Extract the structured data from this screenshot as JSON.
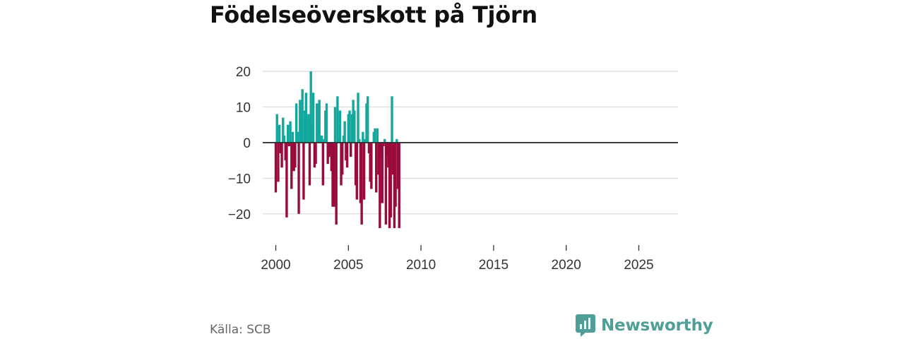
{
  "title": "Födelseöverskott på Tjörn",
  "source": "Källa: SCB",
  "brand": {
    "name": "Newsworthy",
    "icon": "newsworthy-logo-icon"
  },
  "colors": {
    "positive": "#13a89e",
    "negative": "#9b0a3c",
    "grid": "#dddddd",
    "zero": "#333333",
    "text": "#333333"
  },
  "chart_data": {
    "type": "bar",
    "title": "Födelseöverskott på Tjörn",
    "xlabel": "",
    "ylabel": "",
    "ylim": [
      -25,
      21
    ],
    "xlim": [
      1999.1,
      2027.7
    ],
    "y_ticks": [
      20,
      10,
      0,
      -10,
      -20
    ],
    "y_tick_labels": [
      "20",
      "10",
      "0",
      "−10",
      "−20"
    ],
    "x_ticks": [
      2000,
      2005,
      2010,
      2015,
      2020,
      2025
    ],
    "x_tick_labels": [
      "2000",
      "2005",
      "2010",
      "2015",
      "2020",
      "2025"
    ],
    "grid": true,
    "legend": "none",
    "series": [
      {
        "name": "Födelseöverskott",
        "start": 2000,
        "step": 0.08333,
        "values": [
          -14,
          8,
          -11,
          5,
          -3,
          -7,
          7,
          2,
          -5,
          -21,
          5,
          -1,
          6,
          -13,
          3,
          -8,
          -7,
          11,
          3,
          -20,
          12,
          7,
          15,
          -16,
          9,
          14,
          0,
          8,
          -12,
          20,
          5,
          14,
          -7,
          -6,
          11,
          5,
          12,
          2,
          2,
          -12,
          1,
          9,
          11,
          -6,
          -4,
          -3,
          -8,
          -18,
          -18,
          10,
          -23,
          13,
          1,
          9,
          -12,
          -9,
          2,
          6,
          -5,
          -7,
          8,
          9,
          -4,
          8,
          12,
          9,
          -12,
          -16,
          14,
          1,
          -17,
          -23,
          3,
          -16,
          1,
          11,
          13,
          -3,
          -11,
          -13,
          0,
          3,
          4,
          -14,
          4,
          -9,
          -24,
          -4,
          -17,
          -1,
          1,
          -23,
          -4,
          -7,
          -24,
          -21,
          13,
          -9,
          -24,
          -18,
          1,
          -13,
          -24
        ]
      }
    ]
  }
}
